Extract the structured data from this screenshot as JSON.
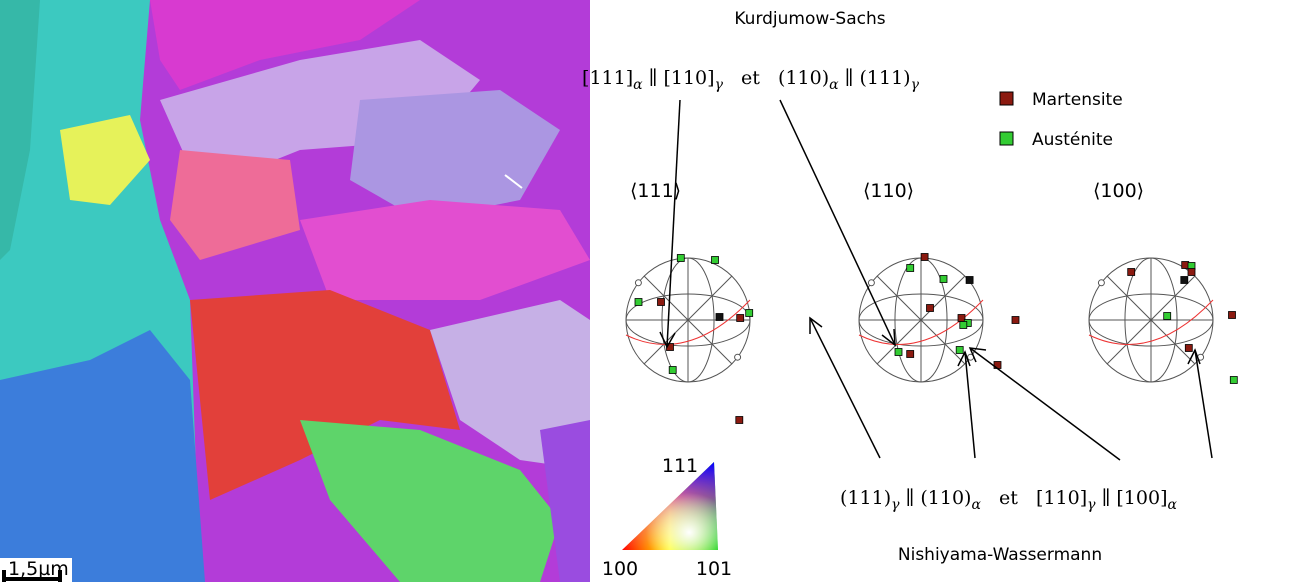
{
  "ks_title": "Kurdjumow-Sachs",
  "ks_relation": [
    {
      "t": "[111]",
      "s": "α"
    },
    {
      "t": " ∥ [110]",
      "s": "γ"
    },
    {
      "t": "   et   (110)",
      "s": "α"
    },
    {
      "t": " ∥ (111)",
      "s": "γ"
    }
  ],
  "legend": [
    "Martensite",
    "Austénite"
  ],
  "pole_labels": [
    "⟨111⟩",
    "⟨110⟩",
    "⟨100⟩"
  ],
  "nw_relation": [
    {
      "t": "(111)",
      "s": "γ"
    },
    {
      "t": " ∥ (110)",
      "s": "α"
    },
    {
      "t": "   et   [110]",
      "s": "γ"
    },
    {
      "t": " ∥ [100]",
      "s": "α"
    }
  ],
  "nw_title": "Nishiyama-Wassermann",
  "scale_bar": "1,5µm",
  "ipf_labels": [
    "111",
    "100",
    "101"
  ]
}
